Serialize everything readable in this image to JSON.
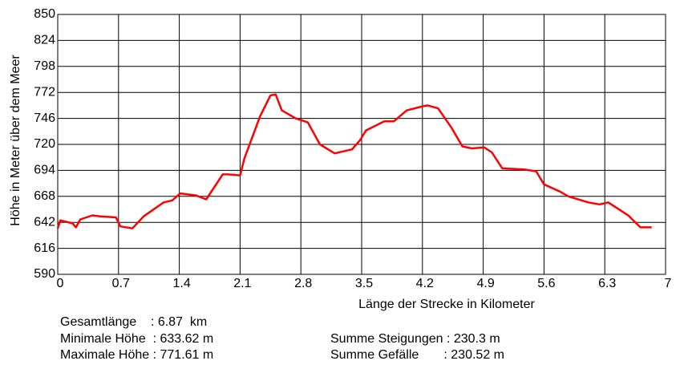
{
  "chart_data": {
    "type": "line",
    "ylabel": "Höhe in Meter über dem Meer",
    "xlabel": "Länge der Strecke in Kilometer",
    "xlim": [
      0,
      7
    ],
    "xticks": [
      0,
      0.7,
      1.4,
      2.1,
      2.8,
      3.5,
      4.2,
      4.9,
      5.6,
      6.3,
      7
    ],
    "ylim": [
      590,
      850
    ],
    "yticks": [
      590,
      616,
      642,
      668,
      694,
      720,
      746,
      772,
      798,
      824,
      850
    ],
    "grid": true,
    "series": [
      {
        "name": "Höhe",
        "color": "#ff0000",
        "x": [
          0,
          0.03,
          0.17,
          0.21,
          0.26,
          0.4,
          0.49,
          0.67,
          0.72,
          0.86,
          0.99,
          1.22,
          1.32,
          1.41,
          1.59,
          1.71,
          1.9,
          1.96,
          2.1,
          2.15,
          2.33,
          2.45,
          2.51,
          2.58,
          2.74,
          2.88,
          3.02,
          3.19,
          3.39,
          3.48,
          3.55,
          3.76,
          3.87,
          4.02,
          4.2,
          4.26,
          4.38,
          4.54,
          4.66,
          4.77,
          4.91,
          5.0,
          5.12,
          5.37,
          5.51,
          5.6,
          5.78,
          5.88,
          6.11,
          6.24,
          6.34,
          6.48,
          6.57,
          6.71,
          6.84
        ],
        "values": [
          636,
          644,
          641,
          637,
          645,
          649,
          648,
          647,
          638,
          636,
          648,
          662,
          664,
          671,
          669,
          665,
          690,
          690,
          689,
          706,
          748,
          769,
          770,
          754,
          746,
          742,
          720,
          711,
          715,
          724,
          734,
          743,
          743,
          754,
          758,
          759,
          756,
          736,
          718,
          716,
          717,
          712,
          696,
          695,
          693,
          680,
          673,
          668,
          662,
          660,
          662,
          654,
          649,
          637,
          637
        ]
      }
    ],
    "stats": [
      "Gesamtlänge    : 6.87  km",
      "Minimale Höhe  : 633.62 m",
      "Maximale Höhe : 771.61 m",
      "Summe Steigungen : 230.3 m",
      "Summe Gefälle       : 230.52 m"
    ]
  }
}
